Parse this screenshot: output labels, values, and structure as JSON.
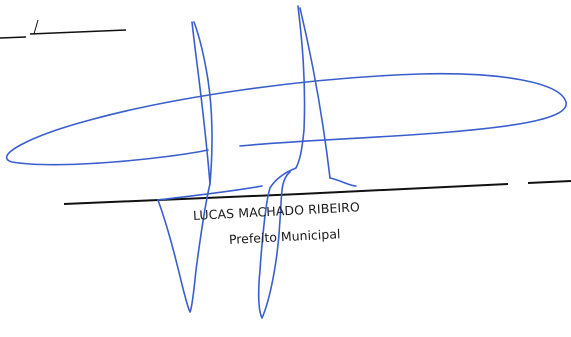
{
  "signature_block": {
    "name": "LUCAS MACHADO RIBEIRO",
    "title": "Prefeito Municipal"
  },
  "colors": {
    "ink_blue": "#3a5fcd",
    "rule_black": "#111111",
    "text": "#1b1b1b"
  }
}
